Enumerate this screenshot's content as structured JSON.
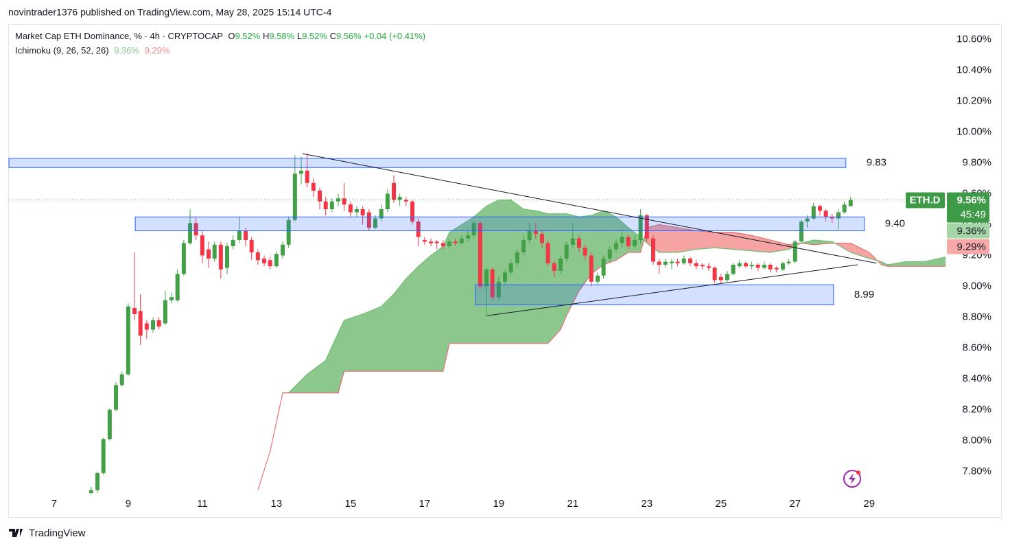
{
  "header": {
    "author_line": "novintrader1376 published on TradingView.com, May 28, 2025 15:14 UTC-4"
  },
  "footer": {
    "brand": "TradingView"
  },
  "chart_data": {
    "type": "candlestick",
    "title": "Market Cap ETH Dominance, % · 4h · CRYPTOCAP",
    "ohlc_legend": [
      {
        "key": "O",
        "value": "9.52%"
      },
      {
        "key": "H",
        "value": "9.58%"
      },
      {
        "key": "L",
        "value": "9.52%"
      },
      {
        "key": "C",
        "value": "9.56%"
      }
    ],
    "change": "+0.04 (+0.41%)",
    "up_color": "#43a047",
    "down_color": "#f23645",
    "grid": false,
    "xlim": [
      5.78,
      31.06
    ],
    "xticks": [
      7,
      9,
      11,
      13,
      15,
      17,
      19,
      21,
      23,
      25,
      27,
      29
    ],
    "ylim": [
      7.5,
      10.7
    ],
    "yticks": [
      {
        "value": 10.6,
        "label": "10.60%"
      },
      {
        "value": 10.4,
        "label": "10.40%"
      },
      {
        "value": 10.2,
        "label": "10.20%"
      },
      {
        "value": 10.0,
        "label": "10.00%"
      },
      {
        "value": 9.8,
        "label": "9.80%"
      },
      {
        "value": 9.6,
        "label": "9.60%"
      },
      {
        "value": 9.4,
        "label": "9.40%"
      },
      {
        "value": 9.2,
        "label": "9.20%"
      },
      {
        "value": 9.0,
        "label": "9.00%"
      },
      {
        "value": 8.8,
        "label": "8.80%"
      },
      {
        "value": 8.6,
        "label": "8.60%"
      },
      {
        "value": 8.4,
        "label": "8.40%"
      },
      {
        "value": 8.2,
        "label": "8.20%"
      },
      {
        "value": 8.0,
        "label": "8.00%"
      },
      {
        "value": 7.8,
        "label": "7.80%"
      }
    ],
    "series": [
      {
        "name": "ETH.D",
        "x": [
          8,
          8.17,
          8.33,
          8.5,
          8.67,
          8.83,
          9,
          9.17,
          9.33,
          9.5,
          9.67,
          9.83,
          10,
          10.17,
          10.33,
          10.5,
          10.67,
          10.83,
          11,
          11.17,
          11.33,
          11.5,
          11.67,
          11.83,
          12,
          12.17,
          12.33,
          12.5,
          12.67,
          12.83,
          13,
          13.17,
          13.33,
          13.5,
          13.67,
          13.83,
          14,
          14.17,
          14.33,
          14.5,
          14.67,
          14.83,
          15,
          15.17,
          15.33,
          15.5,
          15.67,
          15.83,
          16,
          16.17,
          16.33,
          16.5,
          16.67,
          16.83,
          17,
          17.17,
          17.33,
          17.5,
          17.67,
          17.83,
          18,
          18.17,
          18.33,
          18.5,
          18.67,
          18.83,
          19,
          19.17,
          19.33,
          19.5,
          19.67,
          19.83,
          20,
          20.17,
          20.33,
          20.5,
          20.67,
          20.83,
          21,
          21.17,
          21.33,
          21.5,
          21.67,
          21.83,
          22,
          22.17,
          22.33,
          22.5,
          22.67,
          22.83,
          23,
          23.17,
          23.33,
          23.5,
          23.67,
          23.83,
          24,
          24.17,
          24.33,
          24.5,
          24.67,
          24.83,
          25,
          25.17,
          25.33,
          25.5,
          25.67,
          25.83,
          26,
          26.17,
          26.33,
          26.5,
          26.67,
          26.83,
          27,
          27.17,
          27.33,
          27.5,
          27.67,
          27.83,
          28,
          28.17,
          28.33,
          28.5
        ],
        "open": [
          7.66,
          7.68,
          7.79,
          8.01,
          8.2,
          8.36,
          8.43,
          8.86,
          8.84,
          8.76,
          8.72,
          8.78,
          8.76,
          8.91,
          8.91,
          9.08,
          9.28,
          9.41,
          9.33,
          9.24,
          9.18,
          9.27,
          9.12,
          9.26,
          9.3,
          9.36,
          9.3,
          9.22,
          9.18,
          9.17,
          9.13,
          9.2,
          9.27,
          9.43,
          9.73,
          9.75,
          9.67,
          9.62,
          9.55,
          9.5,
          9.55,
          9.57,
          9.53,
          9.48,
          9.5,
          9.48,
          9.38,
          9.44,
          9.5,
          9.67,
          9.56,
          9.56,
          9.55,
          9.42,
          9.3,
          9.29,
          9.29,
          9.28,
          9.26,
          9.29,
          9.28,
          9.31,
          9.33,
          9.41,
          9.0,
          9.11,
          8.93,
          9.03,
          9.09,
          9.15,
          9.22,
          9.3,
          9.36,
          9.34,
          9.28,
          9.15,
          9.1,
          9.18,
          9.27,
          9.31,
          9.25,
          9.2,
          9.03,
          9.07,
          9.18,
          9.24,
          9.28,
          9.32,
          9.26,
          9.3,
          9.46,
          9.31,
          9.16,
          9.14,
          9.15,
          9.16,
          9.15,
          9.18,
          9.15,
          9.14,
          9.13,
          9.12,
          9.06,
          9.04,
          9.08,
          9.13,
          9.15,
          9.13,
          9.14,
          9.12,
          9.14,
          9.12,
          9.11,
          9.15,
          9.16,
          9.29,
          9.42,
          9.44,
          9.52,
          9.49,
          9.45,
          9.44,
          9.48,
          9.52
        ],
        "high": [
          7.7,
          7.8,
          8.02,
          8.21,
          8.38,
          8.45,
          8.89,
          9.22,
          8.95,
          8.78,
          8.8,
          8.8,
          8.97,
          8.96,
          9.11,
          9.3,
          9.5,
          9.45,
          9.36,
          9.29,
          9.29,
          9.29,
          9.28,
          9.33,
          9.45,
          9.38,
          9.32,
          9.24,
          9.2,
          9.19,
          9.23,
          9.29,
          9.45,
          9.85,
          9.84,
          9.86,
          9.7,
          9.64,
          9.58,
          9.57,
          9.6,
          9.67,
          9.55,
          9.52,
          9.52,
          9.5,
          9.46,
          9.53,
          9.63,
          9.72,
          9.6,
          9.58,
          9.56,
          9.44,
          9.32,
          9.31,
          9.3,
          9.3,
          9.31,
          9.31,
          9.33,
          9.36,
          9.43,
          9.42,
          9.12,
          9.12,
          9.06,
          9.11,
          9.17,
          9.24,
          9.33,
          9.41,
          9.41,
          9.36,
          9.3,
          9.17,
          9.2,
          9.29,
          9.41,
          9.33,
          9.27,
          9.22,
          9.09,
          9.2,
          9.26,
          9.31,
          9.37,
          9.34,
          9.33,
          9.5,
          9.47,
          9.33,
          9.18,
          9.18,
          9.18,
          9.18,
          9.2,
          9.19,
          9.17,
          9.15,
          9.15,
          9.13,
          9.08,
          9.1,
          9.15,
          9.17,
          9.16,
          9.16,
          9.15,
          9.16,
          9.15,
          9.13,
          9.16,
          9.18,
          9.3,
          9.43,
          9.46,
          9.54,
          9.53,
          9.5,
          9.47,
          9.5,
          9.55,
          9.58
        ],
        "low": [
          7.65,
          7.66,
          7.78,
          8.0,
          8.19,
          8.35,
          8.42,
          8.78,
          8.62,
          8.66,
          8.7,
          8.72,
          8.75,
          8.89,
          8.9,
          9.07,
          9.27,
          9.3,
          9.15,
          9.12,
          9.16,
          9.05,
          9.08,
          9.24,
          9.28,
          9.26,
          9.17,
          9.14,
          9.13,
          9.11,
          9.12,
          9.18,
          9.25,
          9.42,
          9.66,
          9.64,
          9.58,
          9.5,
          9.46,
          9.48,
          9.52,
          9.49,
          9.45,
          9.45,
          9.4,
          9.36,
          9.37,
          9.42,
          9.48,
          9.54,
          9.52,
          9.52,
          9.4,
          9.26,
          9.27,
          9.26,
          9.24,
          9.24,
          9.25,
          9.26,
          9.27,
          9.29,
          9.31,
          8.98,
          8.8,
          8.91,
          8.91,
          9.01,
          9.07,
          9.13,
          9.2,
          9.28,
          9.31,
          9.25,
          9.13,
          9.06,
          9.08,
          9.16,
          9.25,
          9.22,
          9.17,
          9.0,
          9.01,
          9.05,
          9.16,
          9.22,
          9.25,
          9.24,
          9.24,
          9.28,
          9.29,
          9.14,
          9.08,
          9.12,
          9.11,
          9.13,
          9.14,
          9.13,
          9.11,
          9.11,
          9.1,
          9.02,
          9.02,
          9.03,
          9.07,
          9.12,
          9.12,
          9.11,
          9.1,
          9.11,
          9.09,
          9.09,
          9.1,
          9.14,
          9.15,
          9.28,
          9.38,
          9.43,
          9.46,
          9.42,
          9.41,
          9.37,
          9.47,
          9.52
        ],
        "close": [
          7.68,
          7.79,
          8.01,
          8.2,
          8.36,
          8.43,
          8.87,
          8.82,
          8.68,
          8.72,
          8.78,
          8.74,
          8.91,
          8.93,
          9.08,
          9.28,
          9.41,
          9.33,
          9.2,
          9.18,
          9.27,
          9.11,
          9.26,
          9.3,
          9.36,
          9.3,
          9.22,
          9.17,
          9.15,
          9.13,
          9.21,
          9.27,
          9.43,
          9.73,
          9.75,
          9.67,
          9.62,
          9.55,
          9.5,
          9.55,
          9.57,
          9.53,
          9.48,
          9.5,
          9.46,
          9.38,
          9.44,
          9.5,
          9.6,
          9.56,
          9.58,
          9.55,
          9.42,
          9.32,
          9.29,
          9.28,
          9.28,
          9.26,
          9.29,
          9.28,
          9.31,
          9.33,
          9.41,
          9.0,
          9.11,
          8.93,
          9.03,
          9.09,
          9.15,
          9.22,
          9.3,
          9.36,
          9.34,
          9.28,
          9.15,
          9.1,
          9.18,
          9.27,
          9.31,
          9.25,
          9.2,
          9.03,
          9.07,
          9.18,
          9.24,
          9.28,
          9.32,
          9.26,
          9.3,
          9.46,
          9.31,
          9.16,
          9.14,
          9.16,
          9.16,
          9.15,
          9.18,
          9.15,
          9.13,
          9.13,
          9.12,
          9.04,
          9.04,
          9.08,
          9.14,
          9.15,
          9.13,
          9.14,
          9.12,
          9.14,
          9.11,
          9.11,
          9.15,
          9.16,
          9.29,
          9.42,
          9.44,
          9.52,
          9.49,
          9.45,
          9.44,
          9.48,
          9.53,
          9.56
        ]
      }
    ],
    "last_price": {
      "value": 9.56,
      "label": "9.56%",
      "countdown": "45:49",
      "color": "#3d9a47"
    },
    "indicator": {
      "name": "Ichimoku (9, 26, 52, 26)",
      "last_values": [
        {
          "value": 9.36,
          "label": "9.36%",
          "color": "#a5d6a7"
        },
        {
          "value": 9.29,
          "label": "9.29%",
          "color": "#f7a9a9"
        }
      ],
      "span_a_color": "#6fbf73",
      "span_b_color": "#e57373",
      "bull_fill": "#8cc78e",
      "bear_fill": "#f5a3a3",
      "x": [
        12.5,
        12.83,
        13.17,
        13.33,
        13.83,
        14.33,
        14.67,
        14.83,
        15.33,
        15.83,
        16.17,
        16.5,
        16.83,
        17.17,
        17.5,
        17.67,
        18,
        18.33,
        18.67,
        19,
        19.33,
        19.67,
        20,
        20.33,
        20.67,
        20.83,
        21.17,
        21.5,
        21.83,
        22.17,
        22.5,
        22.83,
        23,
        23.33,
        23.83,
        24.33,
        24.83,
        25.33,
        25.83,
        26.33,
        26.83,
        27.17,
        27.5,
        28,
        28.5,
        29,
        29.33,
        29.5,
        30,
        30.5,
        31.06
      ],
      "span_a": [
        null,
        null,
        null,
        8.31,
        8.43,
        8.52,
        8.7,
        8.78,
        8.82,
        8.87,
        8.95,
        9.05,
        9.13,
        9.2,
        9.26,
        9.35,
        9.4,
        9.45,
        9.52,
        9.56,
        9.56,
        9.5,
        9.49,
        9.47,
        9.47,
        9.47,
        9.45,
        9.46,
        9.49,
        9.45,
        9.38,
        9.32,
        9.28,
        9.22,
        9.22,
        9.24,
        9.25,
        9.24,
        9.23,
        9.22,
        9.24,
        9.28,
        9.3,
        9.29,
        9.22,
        9.18,
        9.16,
        9.14,
        9.16,
        9.16,
        9.19
      ],
      "span_b": [
        7.68,
        7.93,
        8.31,
        8.31,
        8.31,
        8.31,
        8.31,
        8.45,
        8.45,
        8.45,
        8.45,
        8.45,
        8.45,
        8.45,
        8.45,
        8.63,
        8.63,
        8.63,
        8.63,
        8.63,
        8.63,
        8.63,
        8.63,
        8.63,
        8.72,
        8.81,
        8.97,
        9.08,
        9.14,
        9.17,
        9.22,
        9.22,
        9.38,
        9.4,
        9.38,
        9.36,
        9.35,
        9.35,
        9.33,
        9.3,
        9.27,
        9.28,
        9.27,
        9.28,
        9.28,
        9.22,
        9.14,
        9.13,
        9.13,
        9.13,
        9.13
      ]
    },
    "zone_color": "#2962ff",
    "zones": [
      {
        "label": "9.83",
        "y": [
          9.77,
          9.83
        ],
        "x": [
          5.78,
          28.37
        ]
      },
      {
        "label": "9.40",
        "y": [
          9.36,
          9.45
        ],
        "x": [
          9.19,
          28.87
        ]
      },
      {
        "label": "8.99",
        "y": [
          8.88,
          9.01
        ],
        "x": [
          18.37,
          28.04
        ]
      }
    ],
    "trend_lines": [
      {
        "x": [
          13.7,
          29.2
        ],
        "y": [
          9.86,
          9.15
        ]
      },
      {
        "x": [
          18.69,
          28.69
        ],
        "y": [
          8.81,
          9.14
        ]
      }
    ]
  }
}
